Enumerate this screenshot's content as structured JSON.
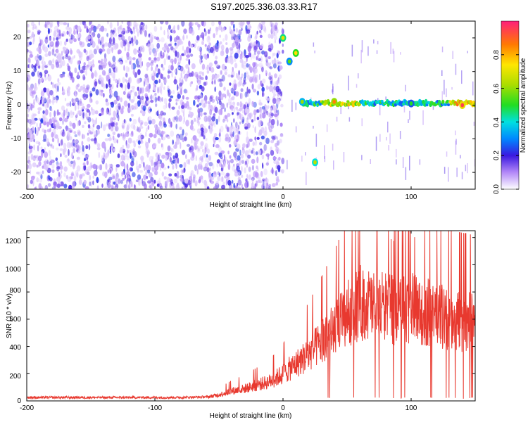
{
  "title": "S197.2025.336.03.33.R17",
  "colors": {
    "trace": "#e8392f",
    "scatter": "#6a2be8",
    "frame": "#000000"
  },
  "chart_data": [
    {
      "type": "heatmap",
      "xlabel": "Height of straight line (km)",
      "ylabel": "Frequency (Hz)",
      "xlim": [
        -200,
        150
      ],
      "ylim": [
        -25,
        25
      ],
      "xticks": [
        "-200",
        "-100",
        "0",
        "100"
      ],
      "yticks": [
        "20",
        "10",
        "0",
        "-10",
        "-20"
      ],
      "colorbar": {
        "label": "Normalized spectral amplitude",
        "range": [
          0,
          1
        ],
        "ticks": [
          "0.0",
          "0.2",
          "0.4",
          "0.6",
          "0.8"
        ]
      },
      "features": [
        {
          "x": 0,
          "y": 20,
          "level": 0.7
        },
        {
          "x": 5,
          "y": 13,
          "level": 0.55
        },
        {
          "x": 10,
          "y": 15.5,
          "level": 0.75
        },
        {
          "x": 15,
          "y": 1,
          "level": 0.6
        },
        {
          "x": 25,
          "y": -17,
          "level": 0.65
        },
        {
          "x": 40,
          "y": 1,
          "level": 0.85
        },
        {
          "x": 100,
          "y": 0.5,
          "level": 0.5
        },
        {
          "x": 140,
          "y": 0,
          "level": 0.95
        }
      ]
    },
    {
      "type": "line",
      "xlabel": "Height of straight line (km)",
      "ylabel": "SNR (10 * v/v)",
      "xlim": [
        -200,
        150
      ],
      "ylim": [
        0,
        1250
      ],
      "xticks": [
        "-200",
        "-100",
        "0",
        "100"
      ],
      "yticks": [
        "0",
        "200",
        "400",
        "600",
        "800",
        "1000",
        "1200"
      ],
      "series": [
        {
          "x": [
            -200,
            -180,
            -160,
            -140,
            -120,
            -100,
            -80,
            -60,
            -50,
            -40,
            -30,
            -20,
            -10,
            0,
            10,
            20,
            30,
            40,
            50,
            55,
            60,
            70,
            80,
            90,
            100,
            110,
            120,
            130,
            140,
            150
          ],
          "values": [
            25,
            25,
            25,
            25,
            25,
            25,
            25,
            30,
            50,
            80,
            100,
            130,
            160,
            220,
            300,
            380,
            480,
            580,
            700,
            760,
            800,
            780,
            760,
            720,
            760,
            730,
            700,
            660,
            650,
            640
          ]
        }
      ]
    }
  ]
}
